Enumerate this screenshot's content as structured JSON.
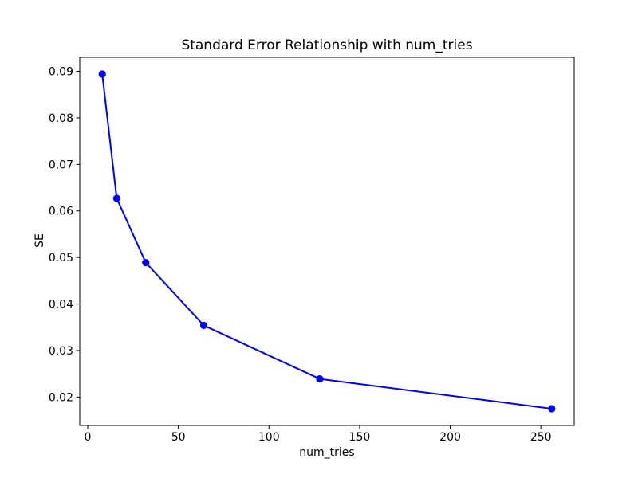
{
  "figure": {
    "background_color": "#ffffff",
    "axes_color": "#000000",
    "text_color": "#000000"
  },
  "chart_data": {
    "type": "line",
    "title": "Standard Error Relationship with num_tries",
    "xlabel": "num_tries",
    "ylabel": "SE",
    "x": [
      8,
      16,
      32,
      64,
      128,
      256
    ],
    "y": [
      0.0894,
      0.0627,
      0.0489,
      0.0354,
      0.0239,
      0.0175
    ],
    "line_color": "#0000ff",
    "marker": "circle",
    "grid": false,
    "legend": null,
    "xlim": [
      -4.4,
      268.4
    ],
    "ylim": [
      0.0139,
      0.093
    ],
    "xticks": [
      0,
      50,
      100,
      150,
      200,
      250
    ],
    "xtick_labels": [
      "0",
      "50",
      "100",
      "150",
      "200",
      "250"
    ],
    "yticks": [
      0.02,
      0.03,
      0.04,
      0.05,
      0.06,
      0.07,
      0.08,
      0.09
    ],
    "ytick_labels": [
      "0.02",
      "0.03",
      "0.04",
      "0.05",
      "0.06",
      "0.07",
      "0.08",
      "0.09"
    ]
  }
}
